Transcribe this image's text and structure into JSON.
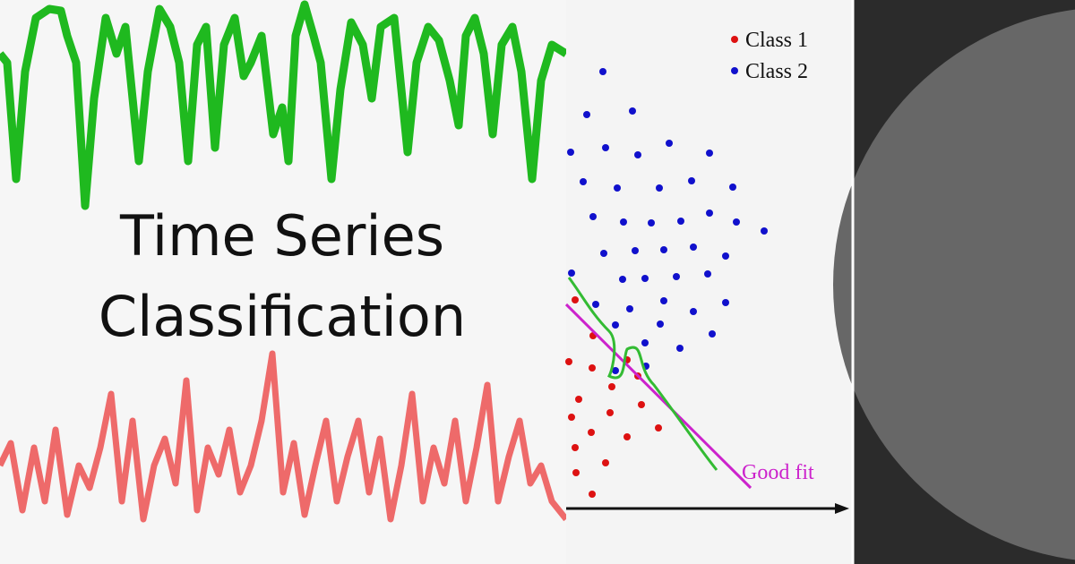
{
  "title": {
    "line1": "Time Series",
    "line2": "Classification"
  },
  "legend": {
    "items": [
      "Class 1",
      "Class 2"
    ]
  },
  "annotation": "Good fit"
}
